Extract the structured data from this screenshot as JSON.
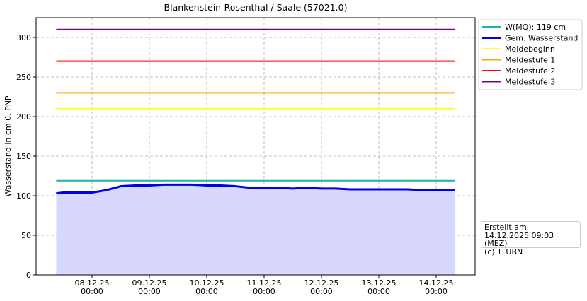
{
  "chart_data": {
    "type": "line",
    "title": "Blankenstein-Rosenthal / Saale (57021.0)",
    "y_label": "Wasserstand in cm ü. PNP",
    "x": [
      "2025-12-07T09:00",
      "2025-12-07T12:00",
      "2025-12-07T18:00",
      "2025-12-08T00:00",
      "2025-12-08T06:00",
      "2025-12-08T12:00",
      "2025-12-08T18:00",
      "2025-12-09T00:00",
      "2025-12-09T06:00",
      "2025-12-09T12:00",
      "2025-12-09T18:00",
      "2025-12-10T00:00",
      "2025-12-10T06:00",
      "2025-12-10T12:00",
      "2025-12-10T18:00",
      "2025-12-11T00:00",
      "2025-12-11T06:00",
      "2025-12-11T12:00",
      "2025-12-11T18:00",
      "2025-12-12T00:00",
      "2025-12-12T06:00",
      "2025-12-12T12:00",
      "2025-12-12T18:00",
      "2025-12-13T00:00",
      "2025-12-13T06:00",
      "2025-12-13T12:00",
      "2025-12-13T18:00",
      "2025-12-14T00:00",
      "2025-12-14T06:00",
      "2025-12-14T08:00"
    ],
    "series": [
      {
        "name": "W(MQ): 119 cm",
        "color": "#20b2aa",
        "level": 119
      },
      {
        "name": "Gem. Wasserstand",
        "color": "#0000ee",
        "fill": "#d8d8ff",
        "values": [
          103,
          104,
          104,
          104,
          107,
          112,
          113,
          113,
          114,
          114,
          114,
          113,
          113,
          112,
          110,
          110,
          110,
          109,
          110,
          109,
          109,
          108,
          108,
          108,
          108,
          108,
          107,
          107,
          107,
          107
        ]
      },
      {
        "name": "Meldebeginn",
        "color": "#ffff33",
        "level": 210
      },
      {
        "name": "Meldestufe 1",
        "color": "#ffa500",
        "level": 230
      },
      {
        "name": "Meldestufe 2",
        "color": "#ff0000",
        "level": 270
      },
      {
        "name": "Meldestufe 3",
        "color": "#800080",
        "level": 310
      }
    ],
    "xlim": [
      "2025-12-07T00:36",
      "2025-12-14T16:18"
    ],
    "xticks": [
      {
        "value": "2025-12-08T00:00",
        "label": "08.12.25\n00:00"
      },
      {
        "value": "2025-12-09T00:00",
        "label": "09.12.25\n00:00"
      },
      {
        "value": "2025-12-10T00:00",
        "label": "10.12.25\n00:00"
      },
      {
        "value": "2025-12-11T00:00",
        "label": "11.12.25\n00:00"
      },
      {
        "value": "2025-12-12T00:00",
        "label": "12.12.25\n00:00"
      },
      {
        "value": "2025-12-13T00:00",
        "label": "13.12.25\n00:00"
      },
      {
        "value": "2025-12-14T00:00",
        "label": "14.12.25\n00:00"
      }
    ],
    "ylim": [
      0,
      325
    ],
    "yticks": [
      0,
      50,
      100,
      150,
      200,
      250,
      300
    ],
    "grid": true,
    "legend": "outside-upper-right",
    "note": [
      "Erstellt am:",
      "14.12.2025 09:03 (MEZ)",
      "(c) TLUBN"
    ]
  }
}
